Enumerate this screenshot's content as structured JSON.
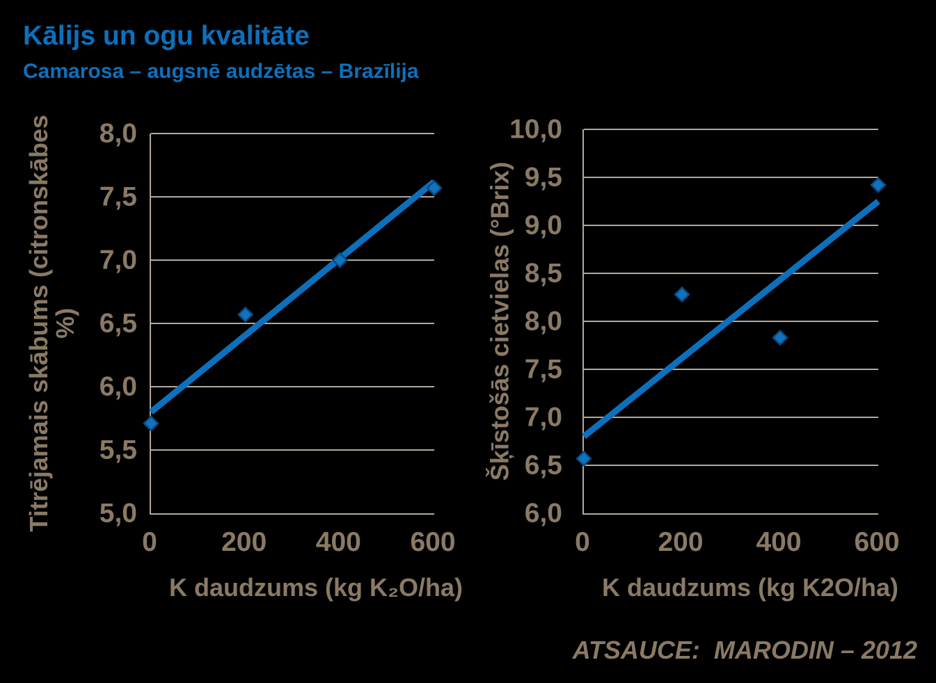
{
  "title": "Kālijs un ogu kvalitāte",
  "subtitle": "Camarosa – augsnē audzētas – Brazīlija",
  "reference": "ATSAUCE:  MARODIN – 2012",
  "colors": {
    "background": "#000000",
    "accent_blue": "#0c70bd",
    "marker_fill": "#1173bd",
    "marker_edge": "#0a4a80",
    "text_brown": "#8a7a65",
    "gridline": "#b3aa9e"
  },
  "chart_data": [
    {
      "type": "scatter",
      "name": "titratable-acidity-vs-potassium",
      "xlabel": "K daudzums (kg K₂O/ha)",
      "ylabel": "Titrējamais skābums (citronskābes %)",
      "ylabel_lines": [
        "Titrējamais skābums (citronskābes",
        "%)"
      ],
      "x": [
        0,
        200,
        400,
        600
      ],
      "values": [
        5.71,
        6.57,
        7.0,
        7.57
      ],
      "trendline": {
        "x0": 0,
        "v0": 5.8,
        "x1": 600,
        "v1": 7.62
      },
      "xlim": [
        0,
        600
      ],
      "ylim": [
        5.0,
        8.0
      ],
      "xticks": [
        0,
        200,
        400,
        600
      ],
      "xtick_labels": [
        "0",
        "200",
        "400",
        "600"
      ],
      "ytick_values": [
        8.0,
        7.5,
        7.0,
        6.5,
        6.0,
        5.5,
        5.0
      ],
      "ytick_labels": [
        "8,0",
        "7,5",
        "7,0",
        "6,5",
        "6,0",
        "5,5",
        "5,0"
      ],
      "grid": true,
      "legend": "none",
      "marker": "diamond"
    },
    {
      "type": "scatter",
      "name": "soluble-solids-vs-potassium",
      "xlabel": "K daudzums (kg K2O/ha)",
      "ylabel": "Šķīstošās cietvielas (°Brix)",
      "ylabel_lines": [
        "Šķīstošās cietvielas (°Brix)"
      ],
      "x": [
        0,
        200,
        400,
        600
      ],
      "values": [
        6.57,
        8.28,
        7.83,
        9.42
      ],
      "trendline": {
        "x0": 0,
        "v0": 6.8,
        "x1": 600,
        "v1": 9.25
      },
      "xlim": [
        0,
        600
      ],
      "ylim": [
        6.0,
        10.0
      ],
      "xticks": [
        0,
        200,
        400,
        600
      ],
      "xtick_labels": [
        "0",
        "200",
        "400",
        "600"
      ],
      "ytick_values": [
        10.0,
        9.5,
        9.0,
        8.5,
        8.0,
        7.5,
        7.0,
        6.5,
        6.0
      ],
      "ytick_labels": [
        "10,0",
        "9,5",
        "9,0",
        "8,5",
        "8,0",
        "7,5",
        "7,0",
        "6,5",
        "6,0"
      ],
      "grid": true,
      "legend": "none",
      "marker": "diamond"
    }
  ]
}
